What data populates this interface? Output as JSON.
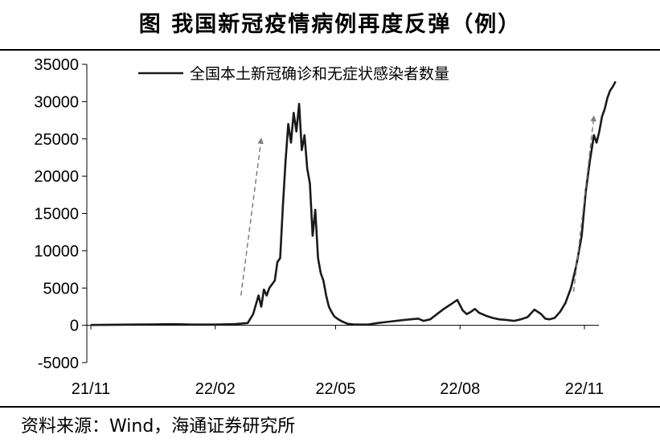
{
  "title": "图    我国新冠疫情病例再度反弹（例）",
  "source": "资料来源：Wind，海通证券研究所",
  "chart_data": {
    "type": "line",
    "title": "我国新冠疫情病例再度反弹（例）",
    "xlabel": "",
    "ylabel": "",
    "ylim": [
      -5000,
      35000
    ],
    "yticks": [
      "35000",
      "30000",
      "25000",
      "20000",
      "15000",
      "10000",
      "5000",
      "0",
      "-5000"
    ],
    "yticks_values": [
      35000,
      30000,
      25000,
      20000,
      15000,
      10000,
      5000,
      0,
      -5000
    ],
    "xticks": [
      "21/11",
      "22/02",
      "22/05",
      "22/08",
      "22/11"
    ],
    "grid": false,
    "legend_position": "top",
    "series": [
      {
        "name": "全国本土新冠确诊和无症状感染者数量",
        "color": "#1a1a1a",
        "x": [
          "2021-11-01",
          "2021-11-15",
          "2021-12-01",
          "2021-12-15",
          "2022-01-01",
          "2022-01-15",
          "2022-02-01",
          "2022-02-15",
          "2022-02-25",
          "2022-03-01",
          "2022-03-05",
          "2022-03-07",
          "2022-03-09",
          "2022-03-11",
          "2022-03-13",
          "2022-03-15",
          "2022-03-17",
          "2022-03-19",
          "2022-03-21",
          "2022-03-23",
          "2022-03-25",
          "2022-03-27",
          "2022-03-29",
          "2022-03-31",
          "2022-04-02",
          "2022-04-04",
          "2022-04-06",
          "2022-04-08",
          "2022-04-10",
          "2022-04-12",
          "2022-04-14",
          "2022-04-16",
          "2022-04-18",
          "2022-04-20",
          "2022-04-22",
          "2022-04-24",
          "2022-04-26",
          "2022-04-28",
          "2022-04-30",
          "2022-05-03",
          "2022-05-06",
          "2022-05-10",
          "2022-05-15",
          "2022-05-20",
          "2022-05-25",
          "2022-06-01",
          "2022-06-10",
          "2022-06-20",
          "2022-07-01",
          "2022-07-05",
          "2022-07-10",
          "2022-07-15",
          "2022-07-20",
          "2022-07-25",
          "2022-07-30",
          "2022-08-03",
          "2022-08-06",
          "2022-08-09",
          "2022-08-12",
          "2022-08-15",
          "2022-08-20",
          "2022-08-25",
          "2022-08-30",
          "2022-09-05",
          "2022-09-10",
          "2022-09-15",
          "2022-09-20",
          "2022-09-25",
          "2022-09-30",
          "2022-10-03",
          "2022-10-06",
          "2022-10-10",
          "2022-10-14",
          "2022-10-18",
          "2022-10-22",
          "2022-10-26",
          "2022-10-30",
          "2022-11-02",
          "2022-11-05",
          "2022-11-08",
          "2022-11-10",
          "2022-11-12",
          "2022-11-14",
          "2022-11-16",
          "2022-11-18",
          "2022-11-20",
          "2022-11-22",
          "2022-11-24"
        ],
        "values": [
          50,
          80,
          100,
          120,
          150,
          100,
          100,
          150,
          300,
          1500,
          4000,
          2500,
          4800,
          4000,
          5000,
          5500,
          6000,
          8500,
          9000,
          16000,
          22000,
          27000,
          24500,
          28500,
          26000,
          29700,
          23500,
          25500,
          21000,
          19000,
          12000,
          15500,
          9000,
          7000,
          6000,
          4000,
          2500,
          1800,
          1200,
          800,
          500,
          200,
          100,
          100,
          100,
          300,
          500,
          700,
          900,
          600,
          800,
          1500,
          2200,
          2800,
          3400,
          2000,
          1500,
          1800,
          2200,
          1700,
          1300,
          1000,
          800,
          700,
          600,
          800,
          1100,
          2100,
          1500,
          900,
          800,
          1000,
          1800,
          3000,
          5000,
          8000,
          12000,
          18000,
          22000,
          25500,
          24500,
          26000,
          28000,
          29000,
          30500,
          31500,
          32000,
          32700
        ]
      }
    ],
    "annotations": [
      {
        "type": "dashed-arrow",
        "from": {
          "x": "2022-02-20",
          "y": 4000
        },
        "to": {
          "x": "2022-03-07",
          "y": 25000
        },
        "color": "#7f7f7f"
      },
      {
        "type": "dashed-arrow",
        "from": {
          "x": "2022-10-24",
          "y": 4500
        },
        "to": {
          "x": "2022-11-08",
          "y": 28000
        },
        "color": "#7f7f7f"
      }
    ]
  }
}
